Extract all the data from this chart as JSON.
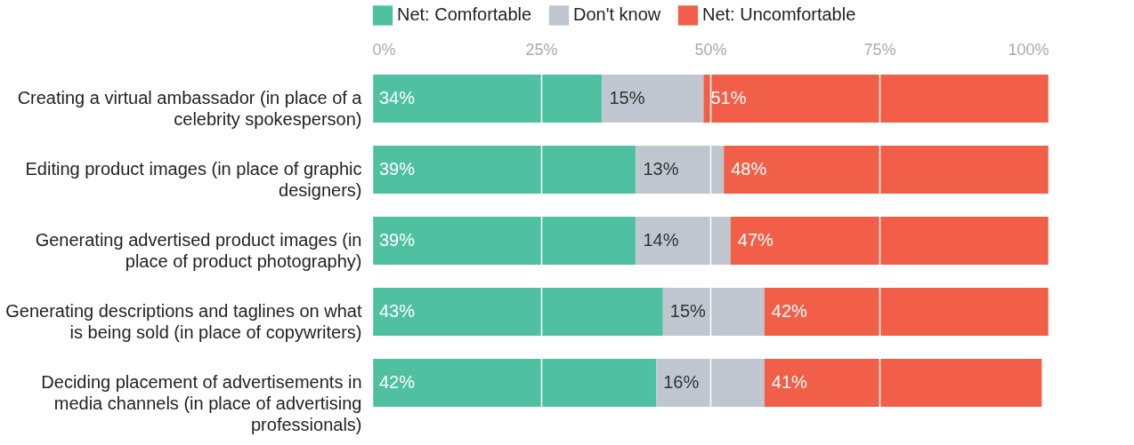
{
  "chart_data": {
    "type": "bar",
    "orientation": "horizontal",
    "stacked": true,
    "categories": [
      "Creating a virtual ambassador (in place of a celebrity spokesperson)",
      "Editing product images (in place of graphic designers)",
      "Generating advertised product images (in place of product photography)",
      "Generating descriptions and taglines on what is being sold (in place of copywriters)",
      "Deciding placement of advertisements in media channels (in place of advertising professionals)"
    ],
    "series": [
      {
        "name": "Net: Comfortable",
        "color": "#4fc1a1",
        "values": [
          34,
          39,
          39,
          43,
          42
        ],
        "value_labels": [
          "34%",
          "39%",
          "39%",
          "43%",
          "42%"
        ]
      },
      {
        "name": "Don't know",
        "color": "#bfc6cf",
        "values": [
          15,
          13,
          14,
          15,
          16
        ],
        "value_labels": [
          "15%",
          "13%",
          "14%",
          "15%",
          "16%"
        ]
      },
      {
        "name": "Net: Uncomfortable",
        "color": "#f25f48",
        "values": [
          51,
          48,
          47,
          42,
          41
        ],
        "value_labels": [
          "51%",
          "48%",
          "47%",
          "42%",
          "41%"
        ]
      }
    ],
    "xlim": [
      0,
      100
    ],
    "xticks": [
      {
        "value": 0,
        "label": "0%"
      },
      {
        "value": 25,
        "label": "25%"
      },
      {
        "value": 50,
        "label": "50%"
      },
      {
        "value": 75,
        "label": "75%"
      },
      {
        "value": 100,
        "label": "100%"
      }
    ],
    "grid": "x",
    "legend": "top"
  }
}
